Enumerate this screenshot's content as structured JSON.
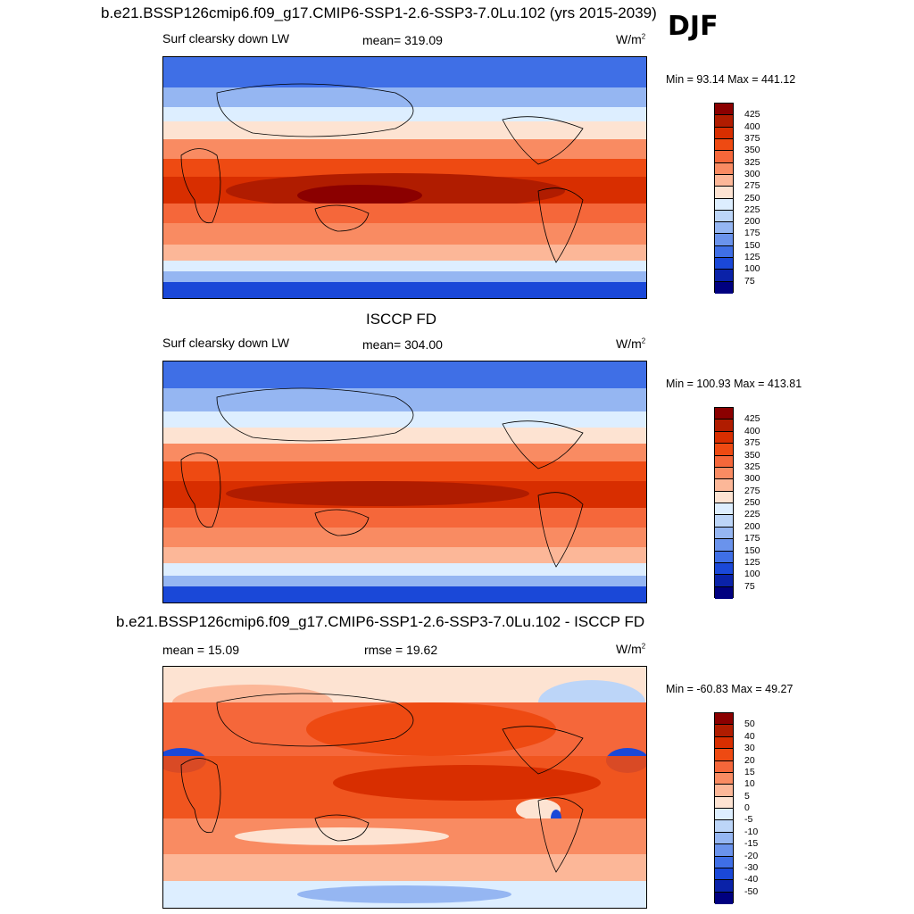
{
  "djf_label": "DJF",
  "panels": [
    {
      "title": "b.e21.BSSP126cmip6.f09_g17.CMIP6-SSP1-2.6-SSP3-7.0Lu.102 (yrs 2015-2039)",
      "left_label": "Surf clearsky down LW",
      "center_label": "mean= 319.09",
      "units": "W/m",
      "units_sup": "2",
      "minmax": "Min =  93.14 Max = 441.12",
      "colorbar_ticks": [
        "425",
        "400",
        "375",
        "350",
        "325",
        "300",
        "275",
        "250",
        "225",
        "200",
        "175",
        "150",
        "125",
        "100",
        "75"
      ]
    },
    {
      "title": "ISCCP FD",
      "left_label": "Surf clearsky down LW",
      "center_label": "mean= 304.00",
      "units": "W/m",
      "units_sup": "2",
      "minmax": "Min = 100.93 Max = 413.81",
      "colorbar_ticks": [
        "425",
        "400",
        "375",
        "350",
        "325",
        "300",
        "275",
        "250",
        "225",
        "200",
        "175",
        "150",
        "125",
        "100",
        "75"
      ]
    },
    {
      "title": "b.e21.BSSP126cmip6.f09_g17.CMIP6-SSP1-2.6-SSP3-7.0Lu.102 - ISCCP FD",
      "left_label": "mean =  15.09",
      "center_label": "rmse =  19.62",
      "units": "W/m",
      "units_sup": "2",
      "minmax": "Min = -60.83 Max =  49.27",
      "colorbar_ticks": [
        "50",
        "40",
        "30",
        "20",
        "15",
        "10",
        "5",
        "0",
        "-5",
        "-10",
        "-15",
        "-20",
        "-30",
        "-40",
        "-50"
      ]
    }
  ],
  "colors": {
    "abs_scale": [
      "#8b0000",
      "#b01c00",
      "#d82e00",
      "#ee4a12",
      "#f5673a",
      "#f98b62",
      "#fcb798",
      "#fde3d2",
      "#ddeeff",
      "#bcd5f8",
      "#95b6f2",
      "#6a93ec",
      "#3f6fe6",
      "#1a48d8",
      "#0a22a8",
      "#000080"
    ],
    "diff_scale": [
      "#8b0000",
      "#b01c00",
      "#d82e00",
      "#ee4a12",
      "#f5673a",
      "#f98b62",
      "#fcb798",
      "#fde3d2",
      "#ddeeff",
      "#bcd5f8",
      "#95b6f2",
      "#6a93ec",
      "#3f6fe6",
      "#1a48d8",
      "#0a22a8",
      "#000080"
    ]
  }
}
